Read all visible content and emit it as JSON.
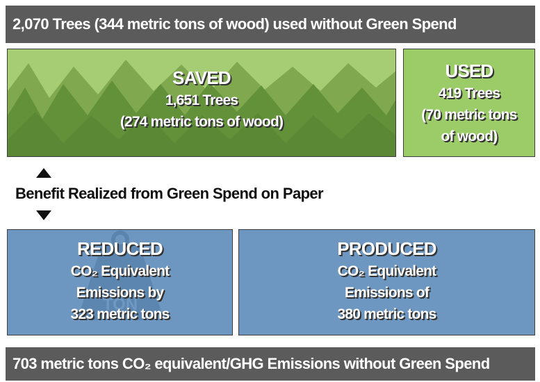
{
  "header": {
    "text": "2,070 Trees (344 metric tons of wood) used without Green Spend"
  },
  "saved": {
    "title": "SAVED",
    "lines": [
      "1,651 Trees",
      "(274 metric tons of wood)"
    ]
  },
  "used": {
    "title": "USED",
    "lines": [
      "419 Trees",
      "(70 metric tons",
      "of wood)"
    ]
  },
  "benefit": {
    "text": "Benefit Realized from Green Spend on Paper"
  },
  "reduced": {
    "title": "REDUCED",
    "icon_label": "TON",
    "lines": [
      "CO₂ Equivalent",
      "Emissions by",
      "323 metric tons"
    ]
  },
  "produced": {
    "title": "PRODUCED",
    "lines": [
      "CO₂ Equivalent",
      "Emissions of",
      "380 metric tons"
    ]
  },
  "footer": {
    "text": "703 metric tons CO₂ equivalent/GHG Emissions without Green Spend"
  }
}
